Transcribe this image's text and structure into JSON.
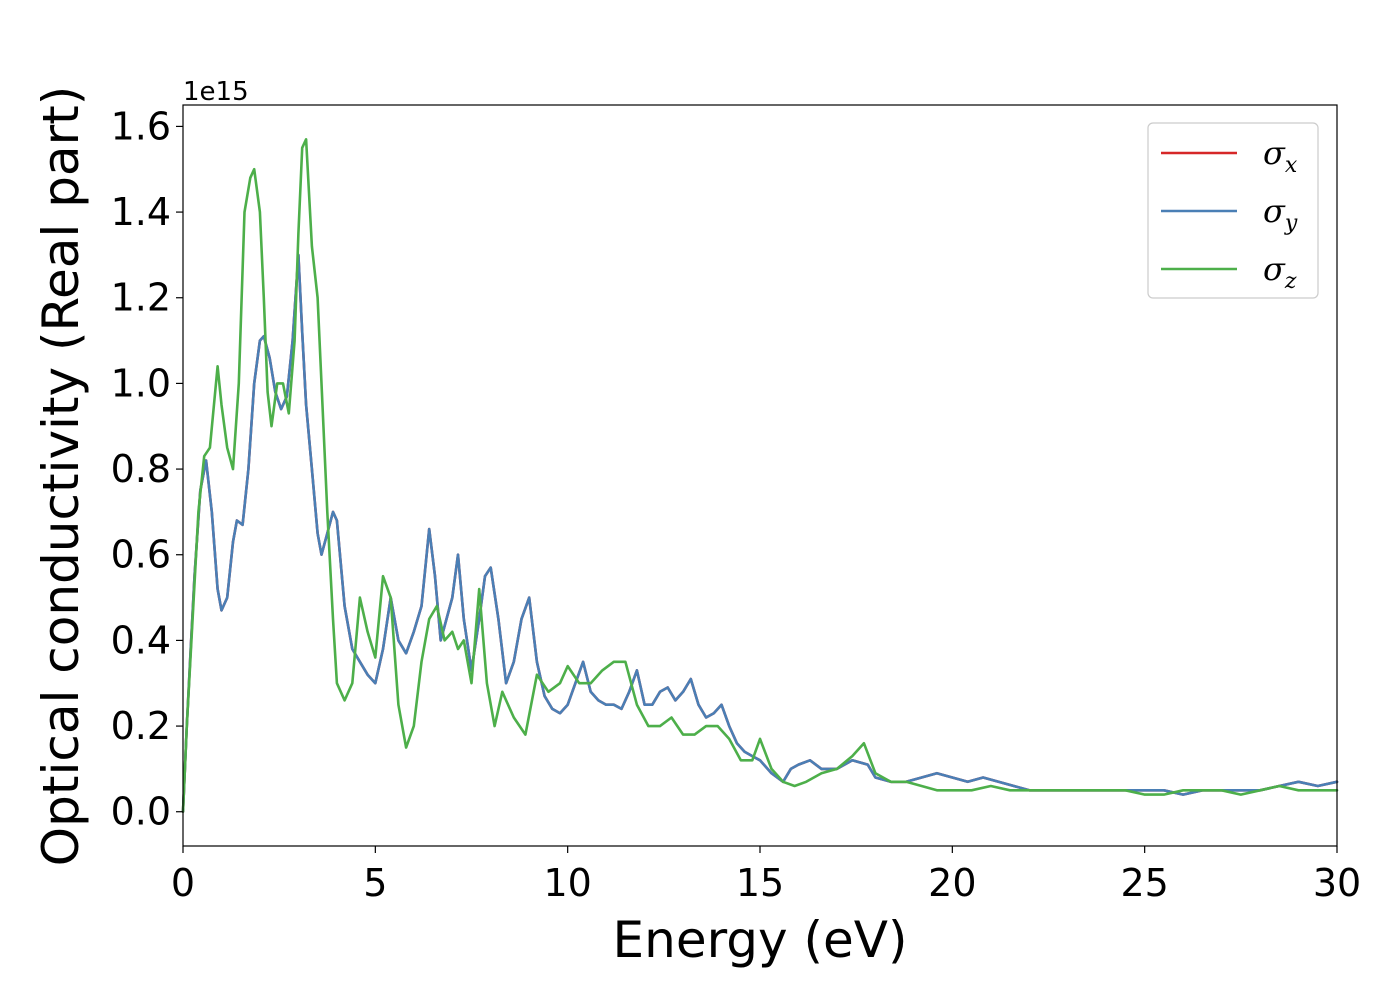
{
  "chart_data": {
    "type": "line",
    "xlabel": "Energy (eV)",
    "ylabel": "Optical conductivity (Real part)",
    "y_offset_label": "1e15",
    "xlim": [
      0,
      30
    ],
    "ylim": [
      -0.08,
      1.65
    ],
    "y_scale_factor": 1000000000000000.0,
    "x_ticks": [
      0,
      5,
      10,
      15,
      20,
      25,
      30
    ],
    "x_tick_labels": [
      "0",
      "5",
      "10",
      "15",
      "20",
      "25",
      "30"
    ],
    "y_ticks": [
      0.0,
      0.2,
      0.4,
      0.6,
      0.8,
      1.0,
      1.2,
      1.4,
      1.6
    ],
    "y_tick_labels": [
      "0.0",
      "0.2",
      "0.4",
      "0.6",
      "0.8",
      "1.0",
      "1.2",
      "1.4",
      "1.6"
    ],
    "grid": false,
    "legend_position": "top-right",
    "colors": {
      "sigma_x": "#d62728",
      "sigma_y": "#4a7fb5",
      "sigma_z": "#4daf4a"
    },
    "series": [
      {
        "name": "σx",
        "symbol": "σ",
        "subscript": "x",
        "color_key": "sigma_x",
        "x": [
          0,
          0.1,
          0.2,
          0.3,
          0.45,
          0.6,
          0.75,
          0.9,
          1.0,
          1.15,
          1.3,
          1.4,
          1.55,
          1.7,
          1.85,
          2.0,
          2.1,
          2.25,
          2.4,
          2.55,
          2.7,
          2.85,
          3.0,
          3.1,
          3.2,
          3.35,
          3.5,
          3.6,
          3.75,
          3.9,
          4.0,
          4.2,
          4.4,
          4.6,
          4.8,
          5.0,
          5.2,
          5.4,
          5.6,
          5.8,
          6.0,
          6.2,
          6.4,
          6.55,
          6.7,
          6.85,
          7.0,
          7.15,
          7.3,
          7.5,
          7.7,
          7.85,
          8.0,
          8.2,
          8.4,
          8.6,
          8.8,
          9.0,
          9.2,
          9.4,
          9.6,
          9.8,
          10.0,
          10.2,
          10.4,
          10.6,
          10.8,
          11.0,
          11.2,
          11.4,
          11.6,
          11.8,
          12.0,
          12.2,
          12.4,
          12.6,
          12.8,
          13.0,
          13.2,
          13.4,
          13.6,
          13.8,
          14.0,
          14.2,
          14.4,
          14.6,
          14.8,
          15.0,
          15.3,
          15.6,
          15.8,
          16.0,
          16.3,
          16.6,
          17.0,
          17.4,
          17.8,
          18.0,
          18.4,
          18.8,
          19.2,
          19.6,
          20.0,
          20.4,
          20.8,
          21.2,
          21.6,
          22.0,
          22.5,
          23.0,
          23.5,
          24.0,
          24.5,
          25.0,
          25.5,
          26.0,
          26.5,
          27.0,
          27.5,
          28.0,
          28.5,
          29.0,
          29.5,
          30.0
        ],
        "y": [
          0.0,
          0.2,
          0.38,
          0.55,
          0.75,
          0.82,
          0.7,
          0.52,
          0.47,
          0.5,
          0.63,
          0.68,
          0.67,
          0.8,
          1.0,
          1.1,
          1.11,
          1.06,
          0.98,
          0.94,
          0.97,
          1.1,
          1.3,
          1.12,
          0.95,
          0.8,
          0.65,
          0.6,
          0.65,
          0.7,
          0.68,
          0.48,
          0.38,
          0.35,
          0.32,
          0.3,
          0.38,
          0.5,
          0.4,
          0.37,
          0.42,
          0.48,
          0.66,
          0.55,
          0.4,
          0.45,
          0.5,
          0.6,
          0.45,
          0.33,
          0.45,
          0.55,
          0.57,
          0.45,
          0.3,
          0.35,
          0.45,
          0.5,
          0.35,
          0.27,
          0.24,
          0.23,
          0.25,
          0.3,
          0.35,
          0.28,
          0.26,
          0.25,
          0.25,
          0.24,
          0.28,
          0.33,
          0.25,
          0.25,
          0.28,
          0.29,
          0.26,
          0.28,
          0.31,
          0.25,
          0.22,
          0.23,
          0.25,
          0.2,
          0.16,
          0.14,
          0.13,
          0.12,
          0.09,
          0.07,
          0.1,
          0.11,
          0.12,
          0.1,
          0.1,
          0.12,
          0.11,
          0.08,
          0.07,
          0.07,
          0.08,
          0.09,
          0.08,
          0.07,
          0.08,
          0.07,
          0.06,
          0.05,
          0.05,
          0.05,
          0.05,
          0.05,
          0.05,
          0.05,
          0.05,
          0.04,
          0.05,
          0.05,
          0.05,
          0.05,
          0.06,
          0.07,
          0.06,
          0.07
        ]
      },
      {
        "name": "σy",
        "symbol": "σ",
        "subscript": "y",
        "color_key": "sigma_y",
        "x": [
          0,
          0.1,
          0.2,
          0.3,
          0.45,
          0.6,
          0.75,
          0.9,
          1.0,
          1.15,
          1.3,
          1.4,
          1.55,
          1.7,
          1.85,
          2.0,
          2.1,
          2.25,
          2.4,
          2.55,
          2.7,
          2.85,
          3.0,
          3.1,
          3.2,
          3.35,
          3.5,
          3.6,
          3.75,
          3.9,
          4.0,
          4.2,
          4.4,
          4.6,
          4.8,
          5.0,
          5.2,
          5.4,
          5.6,
          5.8,
          6.0,
          6.2,
          6.4,
          6.55,
          6.7,
          6.85,
          7.0,
          7.15,
          7.3,
          7.5,
          7.7,
          7.85,
          8.0,
          8.2,
          8.4,
          8.6,
          8.8,
          9.0,
          9.2,
          9.4,
          9.6,
          9.8,
          10.0,
          10.2,
          10.4,
          10.6,
          10.8,
          11.0,
          11.2,
          11.4,
          11.6,
          11.8,
          12.0,
          12.2,
          12.4,
          12.6,
          12.8,
          13.0,
          13.2,
          13.4,
          13.6,
          13.8,
          14.0,
          14.2,
          14.4,
          14.6,
          14.8,
          15.0,
          15.3,
          15.6,
          15.8,
          16.0,
          16.3,
          16.6,
          17.0,
          17.4,
          17.8,
          18.0,
          18.4,
          18.8,
          19.2,
          19.6,
          20.0,
          20.4,
          20.8,
          21.2,
          21.6,
          22.0,
          22.5,
          23.0,
          23.5,
          24.0,
          24.5,
          25.0,
          25.5,
          26.0,
          26.5,
          27.0,
          27.5,
          28.0,
          28.5,
          29.0,
          29.5,
          30.0
        ],
        "y": [
          0.0,
          0.2,
          0.38,
          0.55,
          0.75,
          0.82,
          0.7,
          0.52,
          0.47,
          0.5,
          0.63,
          0.68,
          0.67,
          0.8,
          1.0,
          1.1,
          1.11,
          1.06,
          0.98,
          0.94,
          0.97,
          1.1,
          1.3,
          1.12,
          0.95,
          0.8,
          0.65,
          0.6,
          0.65,
          0.7,
          0.68,
          0.48,
          0.38,
          0.35,
          0.32,
          0.3,
          0.38,
          0.5,
          0.4,
          0.37,
          0.42,
          0.48,
          0.66,
          0.55,
          0.4,
          0.45,
          0.5,
          0.6,
          0.45,
          0.33,
          0.45,
          0.55,
          0.57,
          0.45,
          0.3,
          0.35,
          0.45,
          0.5,
          0.35,
          0.27,
          0.24,
          0.23,
          0.25,
          0.3,
          0.35,
          0.28,
          0.26,
          0.25,
          0.25,
          0.24,
          0.28,
          0.33,
          0.25,
          0.25,
          0.28,
          0.29,
          0.26,
          0.28,
          0.31,
          0.25,
          0.22,
          0.23,
          0.25,
          0.2,
          0.16,
          0.14,
          0.13,
          0.12,
          0.09,
          0.07,
          0.1,
          0.11,
          0.12,
          0.1,
          0.1,
          0.12,
          0.11,
          0.08,
          0.07,
          0.07,
          0.08,
          0.09,
          0.08,
          0.07,
          0.08,
          0.07,
          0.06,
          0.05,
          0.05,
          0.05,
          0.05,
          0.05,
          0.05,
          0.05,
          0.05,
          0.04,
          0.05,
          0.05,
          0.05,
          0.05,
          0.06,
          0.07,
          0.06,
          0.07
        ]
      },
      {
        "name": "σz",
        "symbol": "σ",
        "subscript": "z",
        "color_key": "sigma_z",
        "x": [
          0,
          0.1,
          0.25,
          0.4,
          0.55,
          0.7,
          0.9,
          1.0,
          1.15,
          1.3,
          1.45,
          1.6,
          1.75,
          1.85,
          2.0,
          2.1,
          2.2,
          2.3,
          2.45,
          2.6,
          2.75,
          2.9,
          3.0,
          3.1,
          3.2,
          3.35,
          3.5,
          3.6,
          3.75,
          3.9,
          4.0,
          4.2,
          4.4,
          4.6,
          4.8,
          5.0,
          5.2,
          5.4,
          5.6,
          5.8,
          6.0,
          6.2,
          6.4,
          6.6,
          6.8,
          7.0,
          7.15,
          7.3,
          7.5,
          7.7,
          7.9,
          8.1,
          8.3,
          8.6,
          8.9,
          9.2,
          9.5,
          9.8,
          10.0,
          10.3,
          10.6,
          10.9,
          11.2,
          11.5,
          11.8,
          12.1,
          12.4,
          12.7,
          13.0,
          13.3,
          13.6,
          13.9,
          14.2,
          14.5,
          14.8,
          15.0,
          15.3,
          15.6,
          15.9,
          16.2,
          16.6,
          17.0,
          17.4,
          17.7,
          18.0,
          18.4,
          18.8,
          19.2,
          19.6,
          20.0,
          20.5,
          21.0,
          21.5,
          22.0,
          22.5,
          23.0,
          23.5,
          24.0,
          24.5,
          25.0,
          25.5,
          26.0,
          26.5,
          27.0,
          27.5,
          28.0,
          28.5,
          29.0,
          29.5,
          30.0
        ],
        "y": [
          0.0,
          0.2,
          0.45,
          0.7,
          0.83,
          0.85,
          1.04,
          0.95,
          0.85,
          0.8,
          1.0,
          1.4,
          1.48,
          1.5,
          1.4,
          1.2,
          0.98,
          0.9,
          1.0,
          1.0,
          0.93,
          1.1,
          1.35,
          1.55,
          1.57,
          1.32,
          1.2,
          1.0,
          0.7,
          0.45,
          0.3,
          0.26,
          0.3,
          0.5,
          0.42,
          0.36,
          0.55,
          0.5,
          0.25,
          0.15,
          0.2,
          0.35,
          0.45,
          0.48,
          0.4,
          0.42,
          0.38,
          0.4,
          0.3,
          0.52,
          0.3,
          0.2,
          0.28,
          0.22,
          0.18,
          0.32,
          0.28,
          0.3,
          0.34,
          0.3,
          0.3,
          0.33,
          0.35,
          0.35,
          0.25,
          0.2,
          0.2,
          0.22,
          0.18,
          0.18,
          0.2,
          0.2,
          0.17,
          0.12,
          0.12,
          0.17,
          0.1,
          0.07,
          0.06,
          0.07,
          0.09,
          0.1,
          0.13,
          0.16,
          0.09,
          0.07,
          0.07,
          0.06,
          0.05,
          0.05,
          0.05,
          0.06,
          0.05,
          0.05,
          0.05,
          0.05,
          0.05,
          0.05,
          0.05,
          0.04,
          0.04,
          0.05,
          0.05,
          0.05,
          0.04,
          0.05,
          0.06,
          0.05,
          0.05,
          0.05
        ]
      }
    ]
  }
}
